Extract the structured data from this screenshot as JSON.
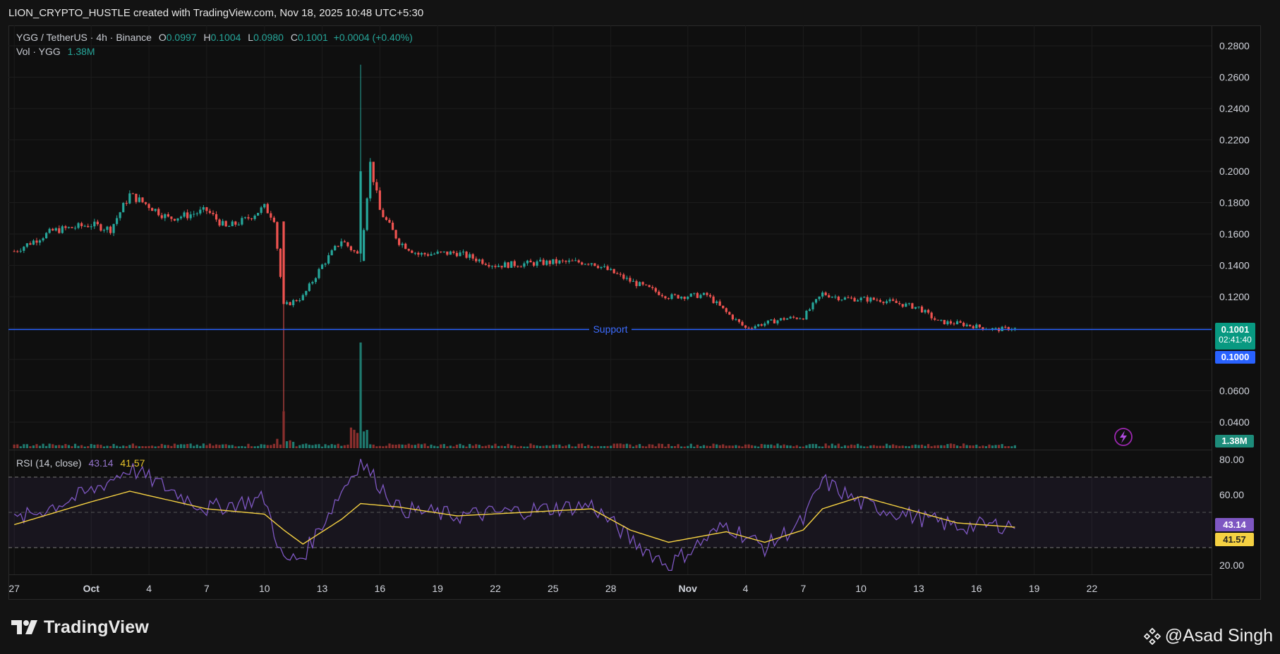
{
  "header": {
    "title": "LION_CRYPTO_HUSTLE created with TradingView.com, Nov 18, 2025 10:48 UTC+5:30"
  },
  "legend": {
    "symbol": "YGG / TetherUS · 4h · Binance",
    "o_label": "O",
    "o": "0.0997",
    "h_label": "H",
    "h": "0.1004",
    "l_label": "L",
    "l": "0.0980",
    "c_label": "C",
    "c": "0.1001",
    "change": "+0.0004 (+0.40%)",
    "vol_label": "Vol · YGG",
    "vol": "1.38M"
  },
  "rsi_legend": {
    "label": "RSI (14, close)",
    "rsi": "43.14",
    "ma": "41.57"
  },
  "price_axis": {
    "ticks": [
      "0.2800",
      "0.2600",
      "0.2400",
      "0.2200",
      "0.2000",
      "0.1800",
      "0.1600",
      "0.1400",
      "0.1200",
      "0.0600",
      "0.0400"
    ]
  },
  "rsi_axis": {
    "ticks": [
      "80.00",
      "60.00",
      "20.00"
    ]
  },
  "time_axis": {
    "labels": [
      "27",
      "Oct",
      "4",
      "7",
      "10",
      "13",
      "16",
      "19",
      "22",
      "25",
      "28",
      "Nov",
      "4",
      "7",
      "10",
      "13",
      "16",
      "19",
      "22"
    ]
  },
  "badges": {
    "last_price": "0.1001",
    "countdown": "02:41:40",
    "support_price": "0.1000",
    "volume": "1.38M",
    "rsi": "43.14",
    "rsi_ma": "41.57"
  },
  "annotations": {
    "support_label": "Support"
  },
  "colors": {
    "up": "#26a69a",
    "down": "#ef5350",
    "support": "#2962ff",
    "rsi": "#7e57c2",
    "rsi_ma": "#f5d142",
    "background": "#0f0f0f"
  },
  "footer": {
    "brand": "TradingView",
    "author": "@Asad Singh"
  },
  "chart_data": {
    "type": "candlestick",
    "interval": "4h",
    "price_range": [
      0.03,
      0.29
    ],
    "support_level": 0.1,
    "ohlc_anchors": [
      {
        "date": "Sep 27",
        "close": 0.149
      },
      {
        "date": "Sep 29",
        "close": 0.162
      },
      {
        "date": "Oct 1",
        "close": 0.166
      },
      {
        "date": "Oct 2",
        "close": 0.163
      },
      {
        "date": "Oct 3",
        "close": 0.185
      },
      {
        "date": "Oct 4",
        "close": 0.178
      },
      {
        "date": "Oct 5",
        "close": 0.17
      },
      {
        "date": "Oct 6",
        "close": 0.172
      },
      {
        "date": "Oct 7",
        "close": 0.175
      },
      {
        "date": "Oct 8",
        "close": 0.164
      },
      {
        "date": "Oct 9",
        "close": 0.169
      },
      {
        "date": "Oct 10",
        "close": 0.177
      },
      {
        "date": "Oct 10 PM",
        "close": 0.17
      },
      {
        "date": "Oct 11",
        "close": 0.114,
        "low": 0.047
      },
      {
        "date": "Oct 12",
        "close": 0.12
      },
      {
        "date": "Oct 13",
        "close": 0.14
      },
      {
        "date": "Oct 14",
        "close": 0.156
      },
      {
        "date": "Oct 15",
        "close": 0.145,
        "high": 0.268
      },
      {
        "date": "Oct 15 PM",
        "close": 0.205
      },
      {
        "date": "Oct 16",
        "close": 0.175
      },
      {
        "date": "Oct 17",
        "close": 0.155
      },
      {
        "date": "Oct 18",
        "close": 0.147
      },
      {
        "date": "Oct 20",
        "close": 0.148
      },
      {
        "date": "Oct 22",
        "close": 0.14
      },
      {
        "date": "Oct 25",
        "close": 0.142
      },
      {
        "date": "Oct 27",
        "close": 0.142
      },
      {
        "date": "Oct 28",
        "close": 0.136
      },
      {
        "date": "Oct 29",
        "close": 0.13
      },
      {
        "date": "Oct 31",
        "close": 0.12
      },
      {
        "date": "Nov 2",
        "close": 0.121
      },
      {
        "date": "Nov 3",
        "close": 0.11
      },
      {
        "date": "Nov 4",
        "close": 0.1
      },
      {
        "date": "Nov 6",
        "close": 0.106
      },
      {
        "date": "Nov 7",
        "close": 0.107
      },
      {
        "date": "Nov 8",
        "close": 0.122
      },
      {
        "date": "Nov 9",
        "close": 0.119
      },
      {
        "date": "Nov 11",
        "close": 0.118
      },
      {
        "date": "Nov 13",
        "close": 0.113
      },
      {
        "date": "Nov 14",
        "close": 0.104
      },
      {
        "date": "Nov 15",
        "close": 0.103
      },
      {
        "date": "Nov 17",
        "close": 0.099
      },
      {
        "date": "Nov 18",
        "close": 0.1001
      }
    ],
    "rsi": {
      "params": "14, close",
      "range": [
        10,
        90
      ],
      "bands": [
        30,
        50,
        70
      ],
      "last": 43.14,
      "ma_last": 41.57,
      "anchors": [
        {
          "date": "Sep 27",
          "rsi": 45,
          "ma": 43
        },
        {
          "date": "Oct 1",
          "rsi": 62,
          "ma": 56
        },
        {
          "date": "Oct 3",
          "rsi": 75,
          "ma": 62
        },
        {
          "date": "Oct 7",
          "rsi": 52,
          "ma": 52
        },
        {
          "date": "Oct 10",
          "rsi": 58,
          "ma": 49
        },
        {
          "date": "Oct 11",
          "rsi": 22,
          "ma": 40
        },
        {
          "date": "Oct 12",
          "rsi": 25,
          "ma": 32
        },
        {
          "date": "Oct 14",
          "rsi": 62,
          "ma": 46
        },
        {
          "date": "Oct 15",
          "rsi": 79,
          "ma": 55
        },
        {
          "date": "Oct 17",
          "rsi": 52,
          "ma": 53
        },
        {
          "date": "Oct 20",
          "rsi": 48,
          "ma": 48
        },
        {
          "date": "Oct 27",
          "rsi": 54,
          "ma": 52
        },
        {
          "date": "Oct 29",
          "rsi": 35,
          "ma": 40
        },
        {
          "date": "Oct 31",
          "rsi": 20,
          "ma": 33
        },
        {
          "date": "Nov 3",
          "rsi": 43,
          "ma": 39
        },
        {
          "date": "Nov 5",
          "rsi": 30,
          "ma": 33
        },
        {
          "date": "Nov 7",
          "rsi": 45,
          "ma": 40
        },
        {
          "date": "Nov 8",
          "rsi": 68,
          "ma": 52
        },
        {
          "date": "Nov 10",
          "rsi": 55,
          "ma": 59
        },
        {
          "date": "Nov 13",
          "rsi": 47,
          "ma": 50
        },
        {
          "date": "Nov 15",
          "rsi": 42,
          "ma": 44
        },
        {
          "date": "Nov 18",
          "rsi": 43.14,
          "ma": 41.57
        }
      ]
    },
    "volume": {
      "last": "1.38M",
      "spikes": [
        {
          "date": "Oct 11",
          "relative": 0.35
        },
        {
          "date": "Oct 15",
          "relative": 1.0
        }
      ]
    }
  }
}
